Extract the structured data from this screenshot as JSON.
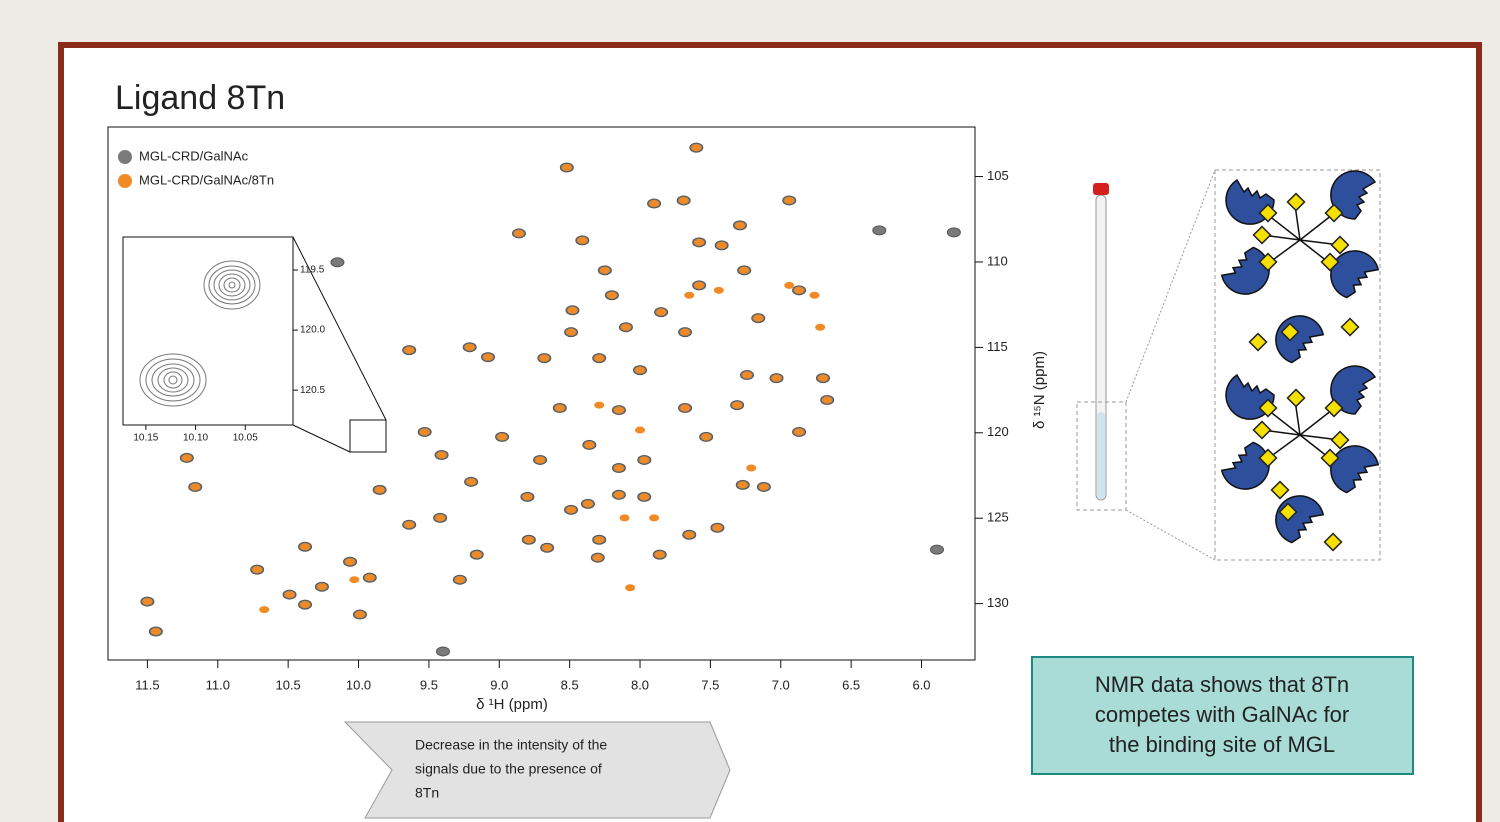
{
  "slide": {
    "title": "Ligand 8Tn",
    "arrow_note": [
      "Decrease in the intensity of the",
      "signals due to the presence of",
      "8Tn"
    ],
    "callout": [
      "NMR data shows that 8Tn",
      "competes with GalNAc for",
      "the binding site of MGL"
    ]
  },
  "chart_data": {
    "type": "scatter",
    "x_label": "δ ¹H (ppm)",
    "y_label": "δ ¹⁵N (ppm)",
    "xlim": [
      11.78,
      5.62
    ],
    "ylim": [
      133.3,
      102.1
    ],
    "xticks": [
      11.5,
      {
        "value": 11,
        "label": "11.0"
      },
      10.5,
      {
        "value": 10,
        "label": "10.0"
      },
      9.5,
      {
        "value": 9,
        "label": "9.0"
      },
      8.5,
      {
        "value": 8,
        "label": "8.0"
      },
      7.5,
      {
        "value": 7,
        "label": "7.0"
      },
      6.5,
      {
        "value": 6,
        "label": "6.0"
      }
    ],
    "yticks": [
      105,
      110,
      115,
      120,
      125,
      130
    ],
    "legend": "top-left",
    "series": [
      {
        "name": "MGL-CRD/GalNAc",
        "color": "#7a7a7a",
        "x": [
          7.6,
          8.52,
          7.69,
          7.29,
          7.9,
          6.94,
          6.3,
          5.77,
          8.86,
          8.41,
          10.15,
          8.25,
          7.26,
          7.58,
          6.87,
          8.2,
          7.85,
          7.16,
          8.48,
          8.1,
          7.68,
          8.49,
          9.21,
          9.64,
          9.08,
          8.29,
          8.68,
          8.0,
          7.24,
          6.7,
          7.03,
          8.57,
          8.15,
          7.68,
          7.31,
          6.67,
          9.53,
          8.98,
          8.36,
          7.97,
          7.53,
          6.87,
          11.22,
          8.71,
          8.15,
          9.41,
          9.2,
          9.85,
          8.15,
          7.97,
          7.27,
          7.12,
          11.16,
          8.8,
          8.37,
          9.42,
          9.64,
          8.49,
          7.45,
          7.65,
          10.38,
          8.79,
          8.66,
          8.29,
          10.06,
          9.16,
          10.72,
          8.3,
          7.86,
          5.89,
          9.92,
          10.49,
          10.38,
          9.28,
          11.5,
          9.99,
          11.44,
          10.26,
          9.4,
          7.58,
          7.42
        ],
        "values": [
          103.31,
          104.47,
          106.4,
          107.86,
          106.58,
          106.4,
          108.15,
          108.27,
          108.33,
          108.74,
          110.02,
          110.49,
          110.49,
          111.37,
          111.66,
          111.95,
          112.94,
          113.29,
          112.83,
          113.82,
          114.11,
          114.11,
          114.99,
          115.16,
          115.57,
          115.63,
          115.63,
          116.33,
          116.62,
          116.8,
          116.8,
          118.55,
          118.67,
          118.55,
          118.38,
          118.08,
          119.95,
          120.24,
          120.71,
          121.59,
          120.24,
          119.95,
          121.47,
          121.59,
          122.06,
          121.3,
          122.87,
          123.34,
          123.63,
          123.75,
          123.05,
          123.17,
          123.17,
          123.75,
          124.16,
          124.98,
          125.38,
          124.51,
          125.56,
          125.97,
          126.67,
          126.26,
          126.73,
          126.26,
          127.55,
          127.13,
          128.01,
          127.31,
          127.13,
          126.84,
          128.48,
          129.47,
          130.06,
          128.6,
          129.88,
          130.64,
          131.63,
          129.01,
          132.8,
          108.85,
          109.03
        ]
      },
      {
        "name": "MGL-CRD/GalNAc/8Tn",
        "color": "#f08a24",
        "x": [
          7.6,
          8.52,
          7.69,
          7.29,
          7.9,
          6.94,
          8.86,
          8.41,
          8.25,
          7.26,
          7.58,
          6.87,
          8.2,
          7.85,
          7.16,
          8.48,
          8.1,
          7.68,
          8.49,
          9.21,
          9.64,
          9.08,
          8.29,
          8.68,
          8.0,
          7.24,
          6.7,
          7.03,
          8.57,
          8.15,
          7.68,
          7.31,
          6.67,
          9.53,
          8.98,
          8.36,
          7.97,
          7.53,
          6.87,
          11.22,
          8.71,
          8.15,
          9.41,
          9.2,
          9.85,
          8.15,
          7.97,
          7.27,
          7.12,
          11.16,
          8.8,
          8.37,
          9.42,
          9.64,
          8.49,
          7.45,
          7.65,
          10.38,
          8.79,
          8.66,
          8.29,
          10.06,
          9.16,
          10.72,
          8.3,
          7.86,
          9.92,
          10.49,
          10.38,
          9.28,
          11.5,
          9.99,
          11.44,
          10.26,
          7.58,
          7.42,
          8.11,
          7.9,
          8.07,
          7.44,
          7.65,
          6.94,
          6.76,
          8.29,
          8.0,
          10.03,
          7.21,
          6.72,
          10.67
        ],
        "values": [
          103.31,
          104.47,
          106.4,
          107.86,
          106.58,
          106.4,
          108.33,
          108.74,
          110.49,
          110.49,
          111.37,
          111.66,
          111.95,
          112.94,
          113.29,
          112.83,
          113.82,
          114.11,
          114.11,
          114.99,
          115.16,
          115.57,
          115.63,
          115.63,
          116.33,
          116.62,
          116.8,
          116.8,
          118.55,
          118.67,
          118.55,
          118.38,
          118.08,
          119.95,
          120.24,
          120.71,
          121.59,
          120.24,
          119.95,
          121.47,
          121.59,
          122.06,
          121.3,
          122.87,
          123.34,
          123.63,
          123.75,
          123.05,
          123.17,
          123.17,
          123.75,
          124.16,
          124.98,
          125.38,
          124.51,
          125.56,
          125.97,
          126.67,
          126.26,
          126.73,
          126.26,
          127.55,
          127.13,
          128.01,
          127.31,
          127.13,
          128.48,
          129.47,
          130.06,
          128.6,
          129.88,
          130.64,
          131.63,
          129.01,
          108.85,
          109.03,
          124.98,
          124.98,
          129.07,
          111.66,
          111.95,
          111.37,
          111.95,
          118.38,
          119.84,
          128.6,
          122.06,
          113.82,
          130.35
        ]
      }
    ],
    "inset": {
      "xlim": [
        10.173,
        10.002
      ],
      "ylim": [
        120.79,
        119.225
      ],
      "xticks": [
        10.15,
        {
          "value": 10.1,
          "label": "10.10"
        },
        10.05
      ],
      "yticks": [
        119.5,
        {
          "value": 120,
          "label": "120.0"
        },
        120.5
      ]
    }
  }
}
